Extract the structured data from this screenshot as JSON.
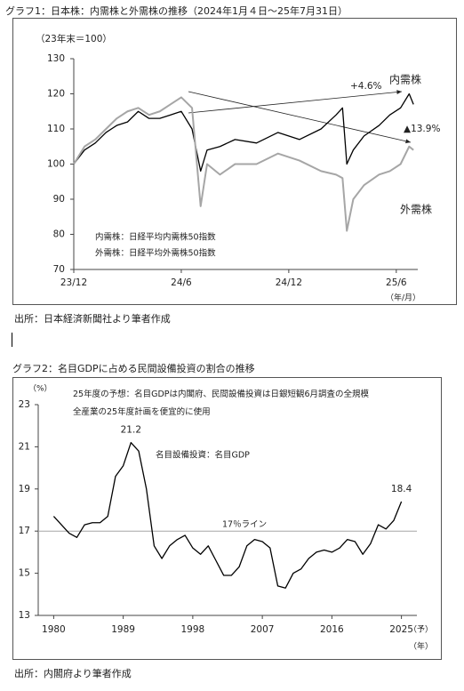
{
  "chart_data": [
    {
      "type": "line",
      "title": "グラフ1：日本株：内需株と外需株の推移（2024年1月４日～25年7月31日）",
      "y_label": "（23年末＝100）",
      "x_label": "（年/月）",
      "x": [
        2024.0,
        2024.05,
        2024.1,
        2024.15,
        2024.2,
        2024.25,
        2024.3,
        2024.35,
        2024.4,
        2024.45,
        2024.5,
        2024.55,
        2024.59,
        2024.62,
        2024.68,
        2024.75,
        2024.85,
        2024.95,
        2025.05,
        2025.15,
        2025.22,
        2025.25,
        2025.27,
        2025.3,
        2025.35,
        2025.42,
        2025.47,
        2025.52,
        2025.56,
        2025.58
      ],
      "series": [
        {
          "name": "内需株",
          "color": "#000000",
          "values": [
            100,
            104,
            106,
            109,
            111,
            112,
            115,
            113,
            113,
            114,
            115,
            110,
            98,
            104,
            105,
            107,
            106,
            109,
            107,
            110,
            114,
            116,
            100,
            104,
            108,
            111,
            114,
            116,
            120,
            117
          ]
        },
        {
          "name": "外需株",
          "color": "#a6a6a6",
          "values": [
            100,
            105,
            107,
            110,
            113,
            115,
            116,
            114,
            115,
            117,
            119,
            116,
            88,
            100,
            97,
            100,
            100,
            103,
            101,
            98,
            97,
            96,
            81,
            90,
            94,
            97,
            98,
            100,
            105,
            104
          ]
        }
      ],
      "xlim": [
        2024.0,
        2025.6
      ],
      "xticks": [
        {
          "value": 2024.0,
          "label": "23/12"
        },
        {
          "value": 2024.5,
          "label": "24/6"
        },
        {
          "value": 2025.0,
          "label": "24/12"
        },
        {
          "value": 2025.5,
          "label": "25/6"
        }
      ],
      "ylim": [
        70,
        130
      ],
      "yticks": [
        70,
        80,
        90,
        100,
        110,
        120,
        130
      ],
      "annotations": [
        "+4.6%",
        "▲13.9%"
      ],
      "notes": [
        "内需株：日経平均内需株50指数",
        "外需株：日経平均外需株50指数"
      ],
      "source": "出所：日本経済新聞社より筆者作成"
    },
    {
      "type": "line",
      "title": "グラフ2：名目GDPに占める民間設備投資の割合の推移",
      "y_label": "（%）",
      "x_label": "（年）",
      "forecast_label": "（予）",
      "x": [
        1980,
        1981,
        1982,
        1983,
        1984,
        1985,
        1986,
        1987,
        1988,
        1989,
        1990,
        1991,
        1992,
        1993,
        1994,
        1995,
        1996,
        1997,
        1998,
        1999,
        2000,
        2001,
        2002,
        2003,
        2004,
        2005,
        2006,
        2007,
        2008,
        2009,
        2010,
        2011,
        2012,
        2013,
        2014,
        2015,
        2016,
        2017,
        2018,
        2019,
        2020,
        2021,
        2022,
        2023,
        2024,
        2025
      ],
      "series": [
        {
          "name": "名目設備投資：名目GDP",
          "color": "#000000",
          "values": [
            17.7,
            17.3,
            16.9,
            16.7,
            17.3,
            17.4,
            17.4,
            17.7,
            19.6,
            20.1,
            21.2,
            20.8,
            19.0,
            16.3,
            15.7,
            16.3,
            16.6,
            16.8,
            16.2,
            15.9,
            16.3,
            15.6,
            14.9,
            14.9,
            15.3,
            16.3,
            16.6,
            16.5,
            16.2,
            14.4,
            14.3,
            15.0,
            15.2,
            15.7,
            16.0,
            16.1,
            16.0,
            16.2,
            16.6,
            16.5,
            15.9,
            16.4,
            17.3,
            17.1,
            17.5,
            18.4
          ],
          "value_labels": [
            null,
            null,
            null,
            null,
            null,
            null,
            null,
            null,
            null,
            null,
            "21.2",
            null,
            null,
            null,
            null,
            null,
            null,
            null,
            null,
            null,
            null,
            null,
            null,
            null,
            null,
            null,
            null,
            null,
            null,
            null,
            null,
            null,
            null,
            null,
            null,
            null,
            null,
            null,
            null,
            null,
            null,
            null,
            null,
            null,
            null,
            "18.4"
          ]
        }
      ],
      "xlim": [
        1978,
        2027
      ],
      "xticks": [
        1980,
        1989,
        1998,
        2007,
        2016,
        2025
      ],
      "ylim": [
        13,
        23
      ],
      "yticks": [
        13,
        15,
        17,
        19,
        21,
        23
      ],
      "ref_line": {
        "value": 17,
        "label": "17％ライン",
        "color": "#a6a6a6"
      },
      "annotations": [
        "25年度の予想：名目GDPは内閣府、民間設備投資は日銀短観6月調査の全規模全産業の25年度計画を便宜的に使用"
      ],
      "source": "出所：内閣府より筆者作成"
    }
  ]
}
